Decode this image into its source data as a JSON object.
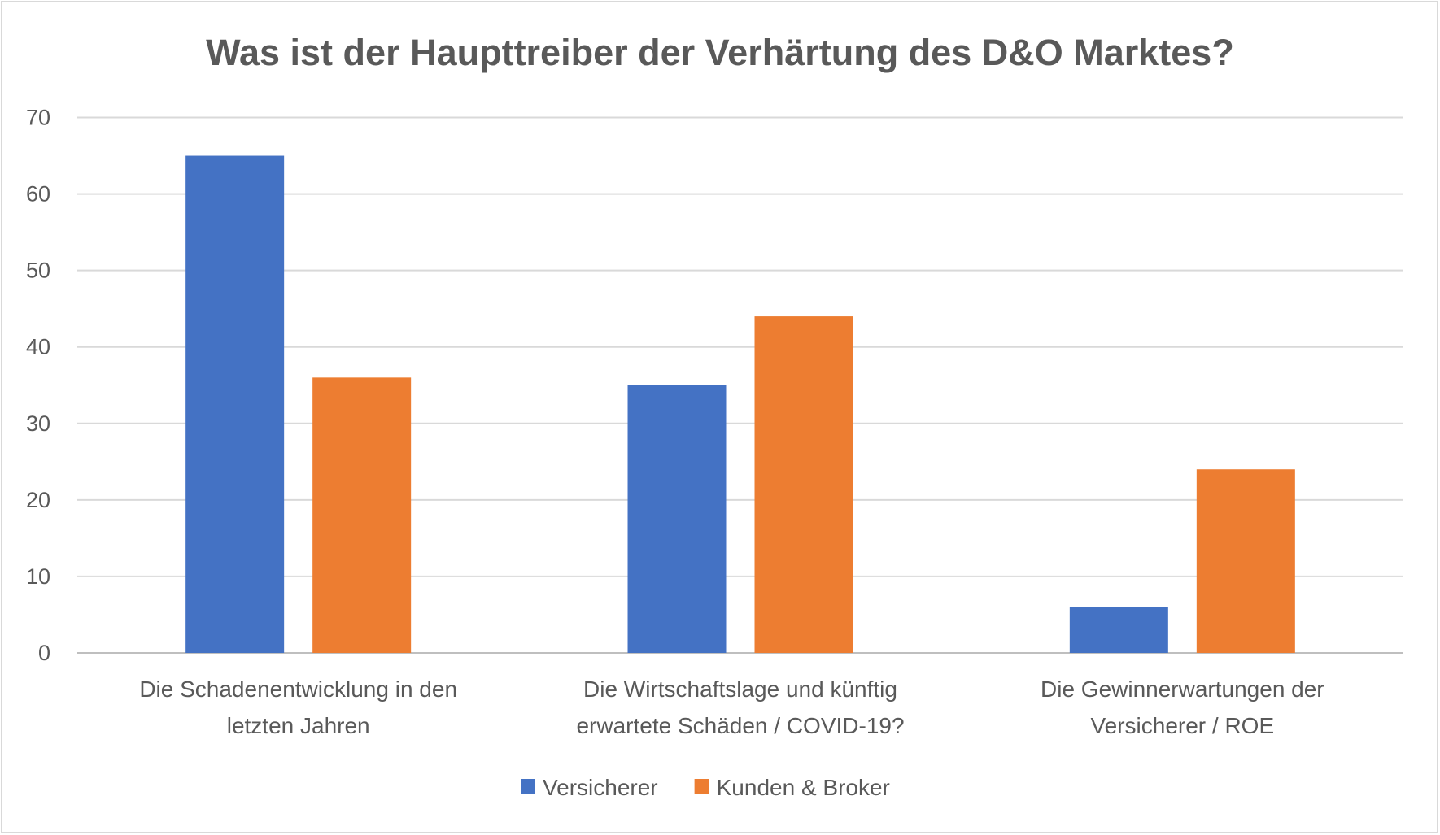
{
  "chart_data": {
    "type": "bar",
    "title": "Was ist der Haupttreiber der Verhärtung des D&O Marktes?",
    "xlabel": "",
    "ylabel": "",
    "ylim": [
      0,
      70
    ],
    "yticks": [
      0,
      10,
      20,
      30,
      40,
      50,
      60,
      70
    ],
    "grid": true,
    "legend_position": "bottom",
    "categories": [
      [
        "Die Schadenentwicklung in den",
        "letzten Jahren"
      ],
      [
        "Die Wirtschaftslage und künftig",
        "erwartete Schäden / COVID-19?"
      ],
      [
        "Die Gewinnerwartungen der",
        "Versicherer / ROE"
      ]
    ],
    "series": [
      {
        "name": "Versicherer",
        "color": "#4472C4",
        "values": [
          65,
          35,
          6
        ]
      },
      {
        "name": "Kunden & Broker",
        "color": "#ED7D31",
        "values": [
          36,
          44,
          24
        ]
      }
    ]
  }
}
